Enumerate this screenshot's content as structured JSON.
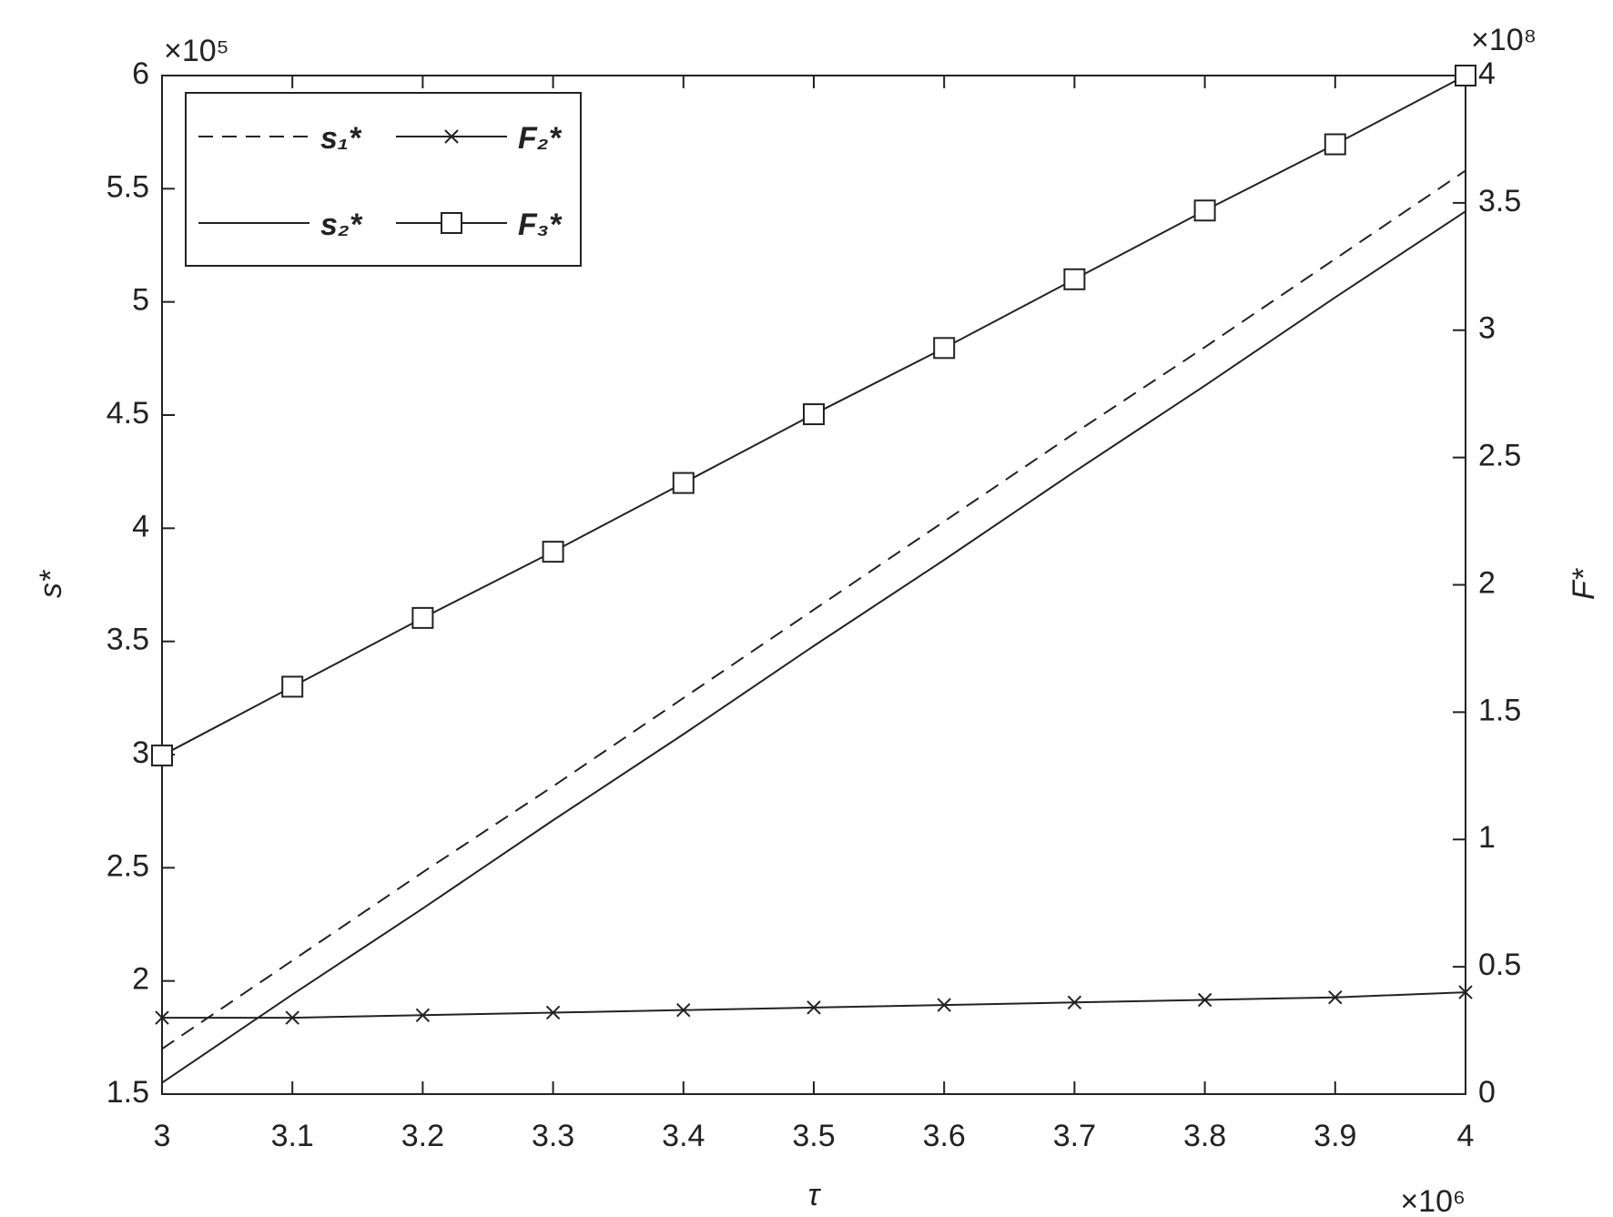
{
  "chart_data": {
    "type": "line",
    "x_label": "τ",
    "y_label": "s*",
    "y2_label": "F*",
    "x_multiplier": "×10⁶",
    "y_multiplier": "×10⁵",
    "y2_multiplier": "×10⁸",
    "x": [
      3,
      3.1,
      3.2,
      3.3,
      3.4,
      3.5,
      3.6,
      3.7,
      3.8,
      3.9,
      4
    ],
    "xlim": [
      3,
      4
    ],
    "xticks": [
      3,
      3.1,
      3.2,
      3.3,
      3.4,
      3.5,
      3.6,
      3.7,
      3.8,
      3.9,
      4
    ],
    "ylim": [
      1.5,
      6
    ],
    "yticks": [
      1.5,
      2,
      2.5,
      3,
      3.5,
      4,
      4.5,
      5,
      5.5,
      6
    ],
    "y2lim": [
      0,
      4
    ],
    "y2ticks": [
      0,
      0.5,
      1,
      1.5,
      2,
      2.5,
      3,
      3.5,
      4
    ],
    "legend": "northwest",
    "series": [
      {
        "name": "s₁*",
        "color": "#222222",
        "style": "dashed",
        "marker": "none",
        "values": [
          1.7,
          2.09,
          2.48,
          2.86,
          3.25,
          3.64,
          4.03,
          4.42,
          4.8,
          5.19,
          5.58
        ]
      },
      {
        "name": "s₂*",
        "color": "#222222",
        "style": "solid",
        "marker": "none",
        "values": [
          1.55,
          1.94,
          2.32,
          2.71,
          3.09,
          3.48,
          3.86,
          4.25,
          4.63,
          5.02,
          5.4
        ]
      },
      {
        "name": "F₂*",
        "color": "#222222",
        "style": "solid",
        "marker": "x",
        "axis": "y2",
        "values": [
          0.3,
          0.3,
          0.31,
          0.32,
          0.33,
          0.34,
          0.35,
          0.36,
          0.37,
          0.38,
          0.4
        ]
      },
      {
        "name": "F₃*",
        "color": "#222222",
        "style": "solid",
        "marker": "square",
        "axis": "y2",
        "values": [
          1.33,
          1.6,
          1.87,
          2.13,
          2.4,
          2.67,
          2.93,
          3.2,
          3.47,
          3.73,
          4
        ]
      }
    ]
  }
}
